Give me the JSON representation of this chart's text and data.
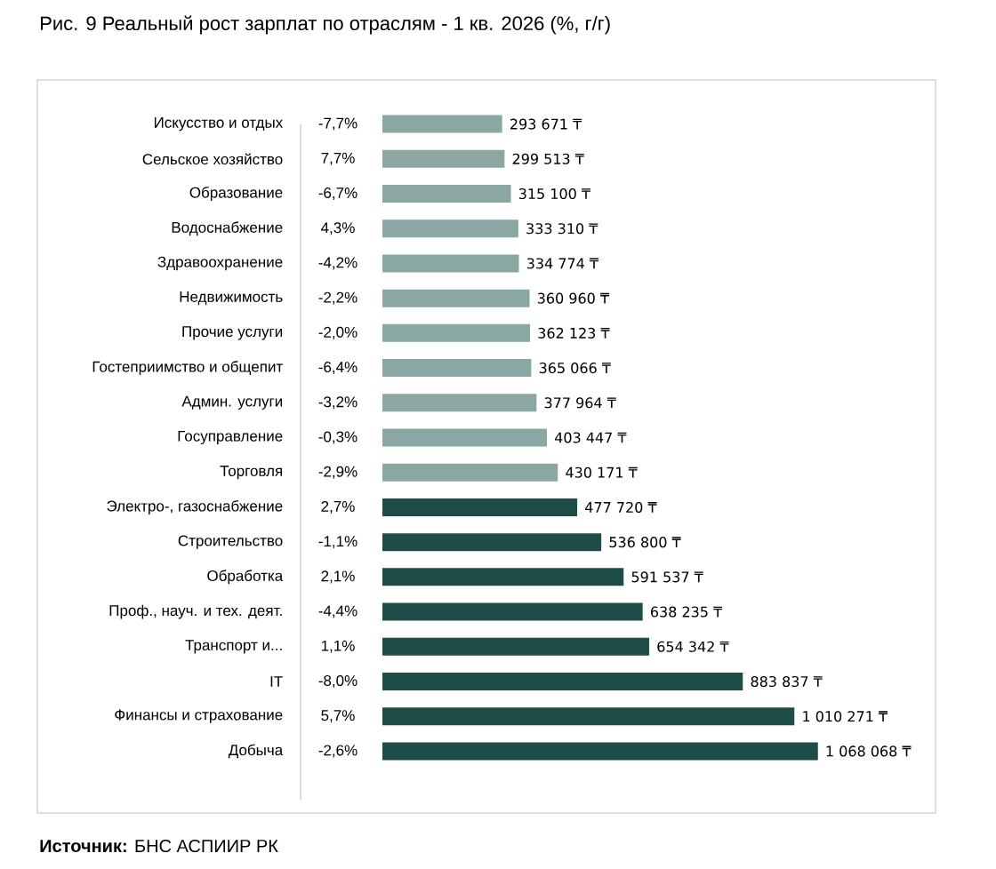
{
  "chart_data": {
    "type": "bar",
    "orientation": "horizontal",
    "title": "Рис. 9 Реальный рост зарплат по отраслям - 1 кв. 2026 (%, г/г)",
    "categories": [
      "Искусство и отдых",
      "Сельское хозяйство",
      "Образование",
      "Водоснабжение",
      "Здравоохранение",
      "Недвижимость",
      "Прочие услуги",
      "Гостеприимство и общепит",
      "Админ. услуги",
      "Госуправление",
      "Торговля",
      "Электро-, газоснабжение",
      "Строительство",
      "Обработка",
      "Проф., науч. и тех. деят.",
      "Транспорт и...",
      "IT",
      "Финансы и страхование",
      "Добыча"
    ],
    "values": [
      293671,
      299513,
      315100,
      333310,
      334774,
      360960,
      362123,
      365066,
      377964,
      403447,
      430171,
      477720,
      536800,
      591537,
      638235,
      654342,
      883837,
      1010271,
      1068068
    ],
    "colors": [
      "#8aa7a3",
      "#8aa7a3",
      "#8aa7a3",
      "#8aa7a3",
      "#8aa7a3",
      "#8aa7a3",
      "#8aa7a3",
      "#8aa7a3",
      "#8aa7a3",
      "#8aa7a3",
      "#8aa7a3",
      "#1e4d48",
      "#1e4d48",
      "#1e4d48",
      "#1e4d48",
      "#1e4d48",
      "#1e4d48",
      "#1e4d48",
      "#1e4d48"
    ],
    "value_labels": [
      "293 671 ₸",
      "299 513 ₸",
      "315 100 ₸",
      "333 310 ₸",
      "334 774 ₸",
      "360 960 ₸",
      "362 123 ₸",
      "365 066 ₸",
      "377 964 ₸",
      "403 447 ₸",
      "430 171 ₸",
      "477 720 ₸",
      "536 800 ₸",
      "591 537 ₸",
      "638 235 ₸",
      "654 342 ₸",
      "883 837 ₸",
      "1 010 271 ₸",
      "1 068 068 ₸"
    ],
    "annotations": [
      "-7,7%",
      "7,7%",
      "-6,7%",
      "4,3%",
      "-4,2%",
      "-2,2%",
      "-2,0%",
      "-6,4%",
      "-3,2%",
      "-0,3%",
      "-2,9%",
      "2,7%",
      "-1,1%",
      "2,1%",
      "-4,4%",
      "1,1%",
      "-8,0%",
      "5,7%",
      "-2,6%",
      "**Источник:** БНС АСПИИР РК"
    ]
  }
}
